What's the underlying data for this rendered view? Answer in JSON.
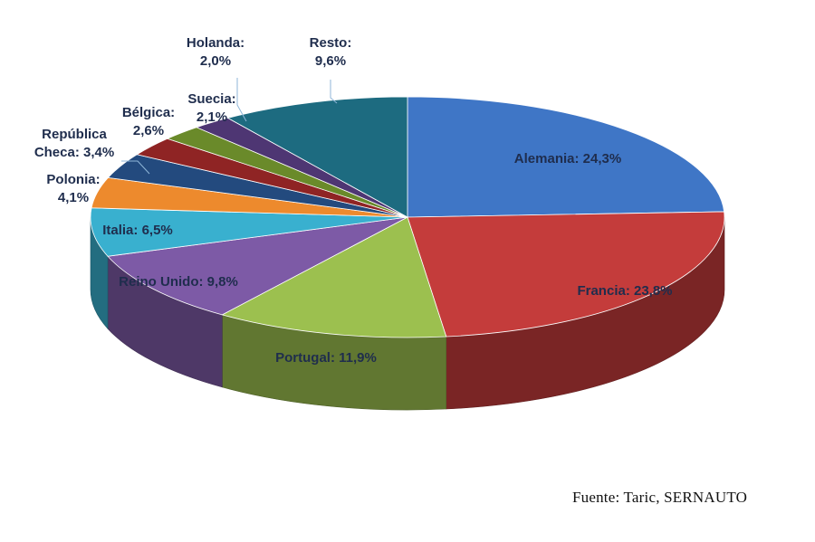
{
  "chart_data": {
    "type": "pie",
    "style": "3d",
    "slices": [
      {
        "label_lines": [
          "Alemania: 24,3%"
        ],
        "value": 24.3,
        "color": "#3f76c6"
      },
      {
        "label_lines": [
          "Francia: 23,8%"
        ],
        "value": 23.8,
        "color": "#c43c3b"
      },
      {
        "label_lines": [
          "Portugal: 11,9%"
        ],
        "value": 11.9,
        "color": "#9cc04f"
      },
      {
        "label_lines": [
          "Reino Unido: 9,8%"
        ],
        "value": 9.8,
        "color": "#7d5aa6"
      },
      {
        "label_lines": [
          "Italia: 6,5%"
        ],
        "value": 6.5,
        "color": "#39b0cf"
      },
      {
        "label_lines": [
          "Polonia:",
          "4,1%"
        ],
        "value": 4.1,
        "color": "#ed8a2d"
      },
      {
        "label_lines": [
          "República",
          "Checa: 3,4%"
        ],
        "value": 3.4,
        "color": "#234a7e"
      },
      {
        "label_lines": [
          "Bélgica:",
          "2,6%"
        ],
        "value": 2.6,
        "color": "#8f2424"
      },
      {
        "label_lines": [
          "Suecia:",
          "2,1%"
        ],
        "value": 2.1,
        "color": "#6a8a2a"
      },
      {
        "label_lines": [
          "Holanda:",
          "2,0%"
        ],
        "value": 2.0,
        "color": "#4e3673"
      },
      {
        "label_lines": [
          "Resto:",
          "9,6%"
        ],
        "value": 9.6,
        "color": "#1d6b80"
      }
    ],
    "source": "Fuente:  Taric, SERNAUTO"
  }
}
